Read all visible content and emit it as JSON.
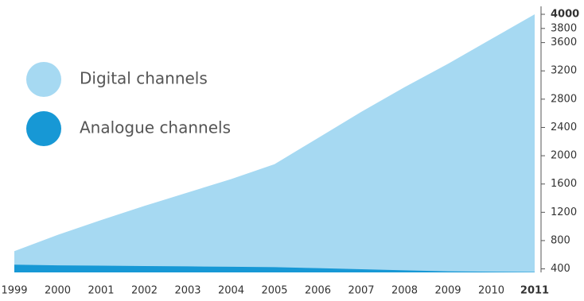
{
  "chart_data": {
    "type": "area",
    "categories": [
      "1999",
      "2000",
      "2001",
      "2002",
      "2003",
      "2004",
      "2005",
      "2006",
      "2007",
      "2008",
      "2009",
      "2010",
      "2011"
    ],
    "series": [
      {
        "name": "Digital channels",
        "color": "#a6d9f2",
        "values": [
          650,
          880,
          1090,
          1290,
          1480,
          1670,
          1880,
          2250,
          2620,
          2970,
          3300,
          3650,
          4000
        ]
      },
      {
        "name": "Analogue channels",
        "color": "#1798d5",
        "values": [
          460,
          450,
          445,
          440,
          435,
          430,
          425,
          410,
          395,
          380,
          365,
          360,
          355
        ]
      }
    ],
    "ylim": [
      350,
      4000
    ],
    "yticks": [
      400,
      800,
      1200,
      1600,
      2000,
      2400,
      2800,
      3200,
      3600,
      3800,
      4000
    ],
    "legend": "top-left"
  }
}
